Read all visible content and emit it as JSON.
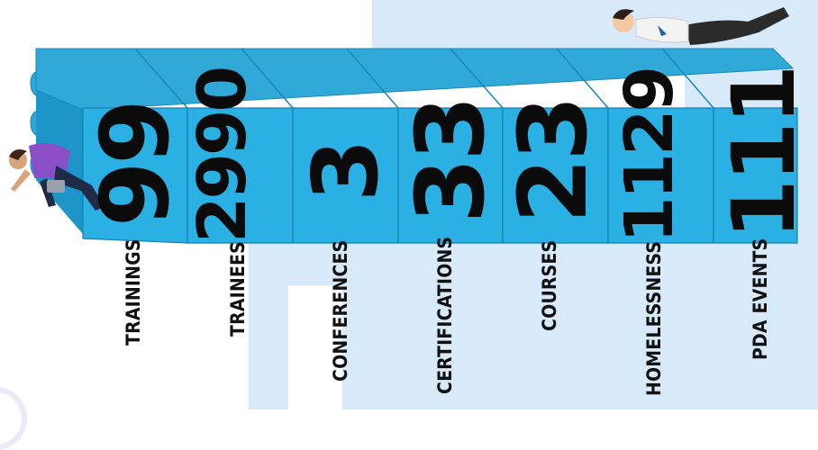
{
  "stats": [
    {
      "value": "99",
      "label": "TRAININGS"
    },
    {
      "value": "2990",
      "label": "TRAINEES"
    },
    {
      "value": "3",
      "label": "CONFERENCES"
    },
    {
      "value": "33",
      "label": "CERTIFICATIONS"
    },
    {
      "value": "23",
      "label": "COURSES"
    },
    {
      "value": "1129",
      "label": "HOMELESSNESS"
    },
    {
      "value": "111",
      "label": "PDA EVENTS"
    }
  ],
  "colors": {
    "brick": "#2ab0e3",
    "background": "#d8e9f9",
    "text": "#0b0b0b"
  },
  "icons": [
    "person-lying-icon",
    "person-with-laptop-icon"
  ]
}
